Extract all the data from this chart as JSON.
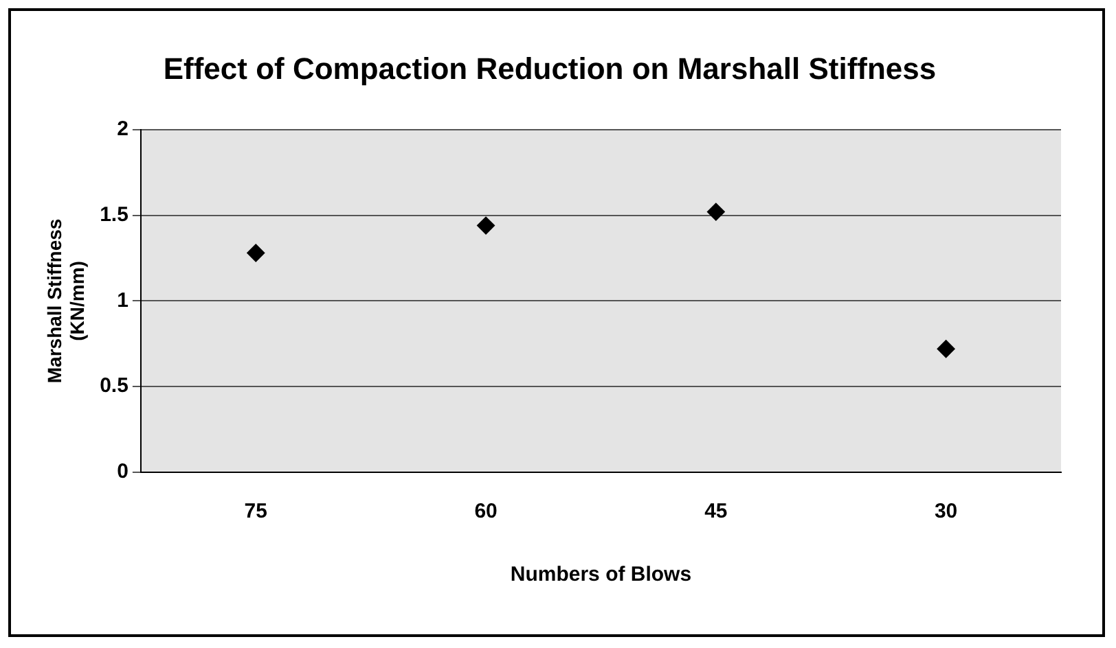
{
  "chart_data": {
    "type": "scatter",
    "title": "Effect of Compaction Reduction on Marshall Stiffness",
    "xlabel": "Numbers of Blows",
    "ylabel": "Marshall Stiffness (KN/mm)",
    "categories": [
      "75",
      "60",
      "45",
      "30"
    ],
    "series": [
      {
        "color": "#000000",
        "values": [
          1.28,
          1.44,
          1.52,
          0.72
        ]
      }
    ],
    "ylim": [
      0,
      2
    ],
    "yticks": [
      0,
      0.5,
      1,
      1.5,
      2
    ],
    "grid": "y",
    "legend": false,
    "marker": "diamond"
  }
}
